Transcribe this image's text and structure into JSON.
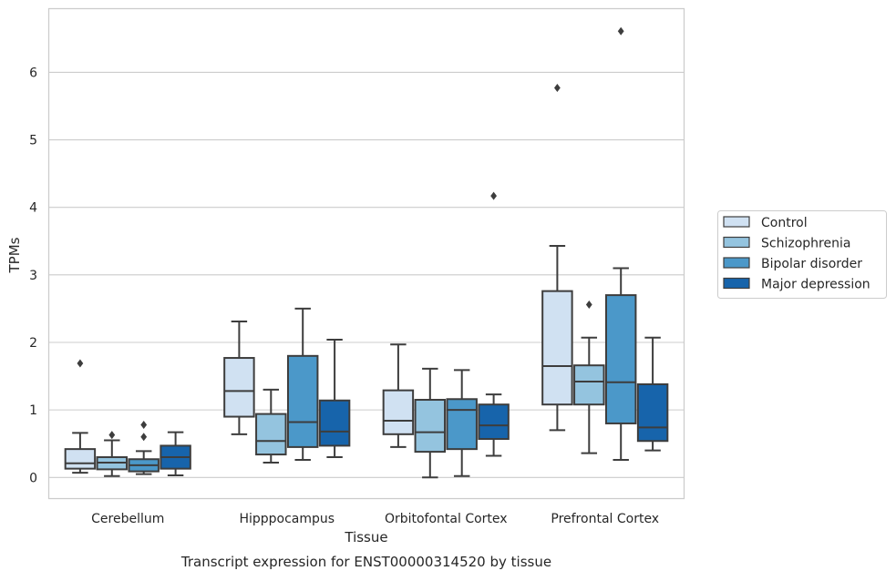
{
  "chart_data": {
    "type": "boxplot",
    "title": "",
    "caption": "Transcript expression for ENST00000314520 by tissue",
    "xlabel": "Tissue",
    "ylabel": "TPMs",
    "ylim": [
      -0.32,
      6.95
    ],
    "yticks": [
      0,
      1,
      2,
      3,
      4,
      5,
      6
    ],
    "grid": "horizontal",
    "legend_position": "right",
    "categories": [
      "Cerebellum",
      "Hipppocampus",
      "Orbitofontal Cortex",
      "Prefrontal Cortex"
    ],
    "series": [
      {
        "name": "Control",
        "color": "#d0e1f2",
        "boxes": [
          {
            "whislo": 0.07,
            "q1": 0.13,
            "med": 0.21,
            "q3": 0.42,
            "whishi": 0.66,
            "fliers": [
              1.69
            ]
          },
          {
            "whislo": 0.64,
            "q1": 0.9,
            "med": 1.28,
            "q3": 1.77,
            "whishi": 2.31,
            "fliers": []
          },
          {
            "whislo": 0.45,
            "q1": 0.64,
            "med": 0.84,
            "q3": 1.29,
            "whishi": 1.97,
            "fliers": []
          },
          {
            "whislo": 0.7,
            "q1": 1.08,
            "med": 1.65,
            "q3": 2.76,
            "whishi": 3.43,
            "fliers": [
              5.77
            ]
          }
        ]
      },
      {
        "name": "Schizophrenia",
        "color": "#94c4df",
        "boxes": [
          {
            "whislo": 0.02,
            "q1": 0.12,
            "med": 0.22,
            "q3": 0.3,
            "whishi": 0.55,
            "fliers": [
              0.63
            ]
          },
          {
            "whislo": 0.22,
            "q1": 0.34,
            "med": 0.54,
            "q3": 0.94,
            "whishi": 1.3,
            "fliers": []
          },
          {
            "whislo": 0.0,
            "q1": 0.38,
            "med": 0.67,
            "q3": 1.15,
            "whishi": 1.61,
            "fliers": []
          },
          {
            "whislo": 0.36,
            "q1": 1.08,
            "med": 1.42,
            "q3": 1.66,
            "whishi": 2.07,
            "fliers": [
              2.56
            ]
          }
        ]
      },
      {
        "name": "Bipolar disorder",
        "color": "#4b98c9",
        "boxes": [
          {
            "whislo": 0.05,
            "q1": 0.09,
            "med": 0.18,
            "q3": 0.27,
            "whishi": 0.39,
            "fliers": [
              0.6,
              0.78
            ]
          },
          {
            "whislo": 0.26,
            "q1": 0.45,
            "med": 0.82,
            "q3": 1.8,
            "whishi": 2.5,
            "fliers": []
          },
          {
            "whislo": 0.02,
            "q1": 0.42,
            "med": 1.0,
            "q3": 1.16,
            "whishi": 1.59,
            "fliers": []
          },
          {
            "whislo": 0.26,
            "q1": 0.8,
            "med": 1.41,
            "q3": 2.7,
            "whishi": 3.1,
            "fliers": [
              6.61
            ]
          }
        ]
      },
      {
        "name": "Major depression",
        "color": "#1764ab",
        "boxes": [
          {
            "whislo": 0.03,
            "q1": 0.13,
            "med": 0.3,
            "q3": 0.47,
            "whishi": 0.67,
            "fliers": []
          },
          {
            "whislo": 0.3,
            "q1": 0.47,
            "med": 0.68,
            "q3": 1.14,
            "whishi": 2.04,
            "fliers": []
          },
          {
            "whislo": 0.32,
            "q1": 0.57,
            "med": 0.77,
            "q3": 1.08,
            "whishi": 1.23,
            "fliers": [
              4.17
            ]
          },
          {
            "whislo": 0.4,
            "q1": 0.54,
            "med": 0.74,
            "q3": 1.38,
            "whishi": 2.07,
            "fliers": []
          }
        ]
      }
    ]
  }
}
